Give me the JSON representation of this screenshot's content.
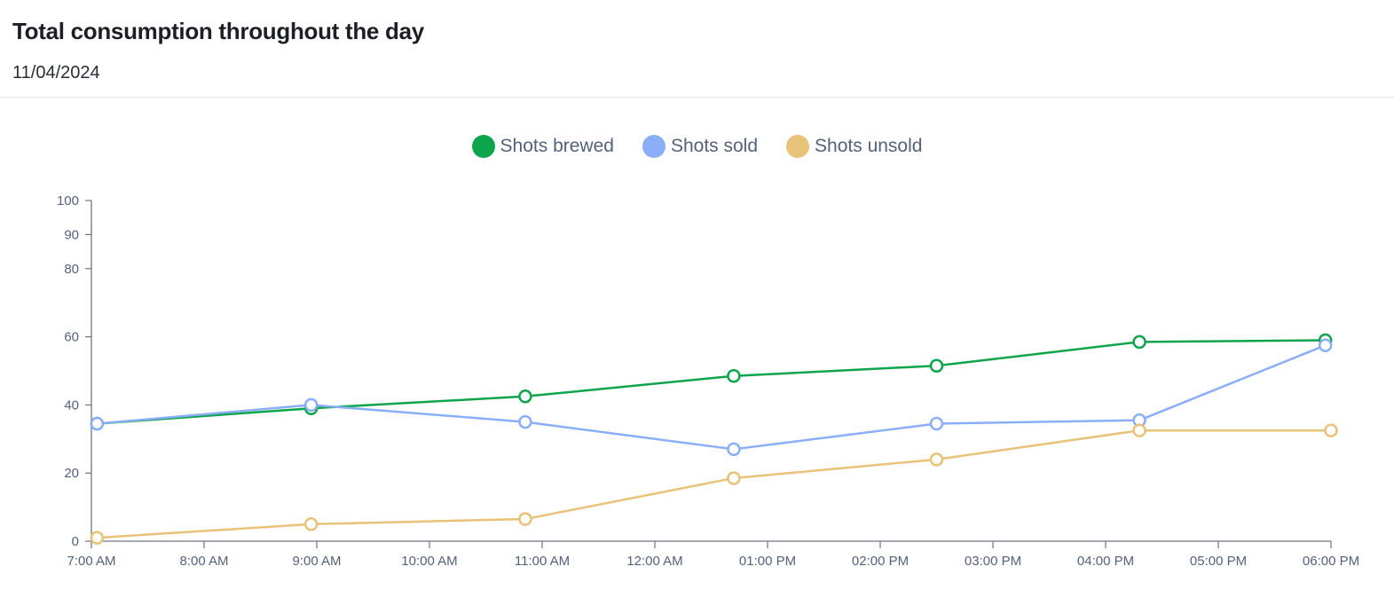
{
  "header": {
    "title": "Total consumption throughout the day",
    "date": "11/04/2024"
  },
  "chart_data": {
    "type": "line",
    "x": [
      "7:00 AM",
      "8:00 AM",
      "9:00 AM",
      "10:00 AM",
      "11:00 AM",
      "12:00 AM",
      "01:00 PM",
      "02:00 PM",
      "03:00 PM",
      "04:00 PM",
      "05:00 PM",
      "06:00 PM"
    ],
    "ylim": [
      0,
      100
    ],
    "yticks": [
      0,
      20,
      40,
      60,
      80,
      90,
      100
    ],
    "grid": false,
    "legend_position": "top-center",
    "series": [
      {
        "name": "Shots brewed",
        "color": "#0ea44b",
        "points": [
          {
            "t": 7.05,
            "y": 34.5
          },
          {
            "t": 8.95,
            "y": 39
          },
          {
            "t": 10.85,
            "y": 42.5
          },
          {
            "t": 12.7,
            "y": 48.5
          },
          {
            "t": 14.5,
            "y": 51.5
          },
          {
            "t": 16.3,
            "y": 58.5
          },
          {
            "t": 17.95,
            "y": 59
          }
        ]
      },
      {
        "name": "Shots sold",
        "color": "#8aaef7",
        "points": [
          {
            "t": 7.05,
            "y": 34.5
          },
          {
            "t": 8.95,
            "y": 40
          },
          {
            "t": 10.85,
            "y": 35
          },
          {
            "t": 12.7,
            "y": 27
          },
          {
            "t": 14.5,
            "y": 34.5
          },
          {
            "t": 16.3,
            "y": 35.5
          },
          {
            "t": 17.95,
            "y": 57.5
          }
        ]
      },
      {
        "name": "Shots unsold",
        "color": "#e8c278",
        "points": [
          {
            "t": 7.05,
            "y": 1
          },
          {
            "t": 8.95,
            "y": 5
          },
          {
            "t": 10.85,
            "y": 6.5
          },
          {
            "t": 12.7,
            "y": 18.5
          },
          {
            "t": 14.5,
            "y": 24
          },
          {
            "t": 16.3,
            "y": 32.5
          },
          {
            "t": 18.0,
            "y": 32.5
          }
        ]
      }
    ]
  }
}
